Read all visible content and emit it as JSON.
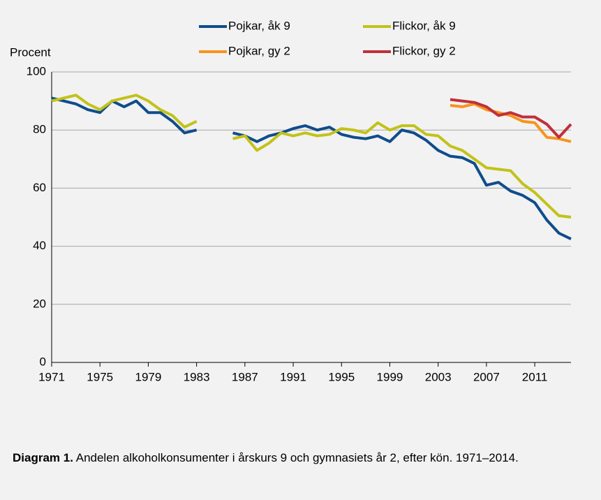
{
  "chart_data": {
    "type": "line",
    "y_label": "Procent",
    "x": [
      1971,
      1972,
      1973,
      1974,
      1975,
      1976,
      1977,
      1978,
      1979,
      1980,
      1981,
      1982,
      1983,
      1984,
      1985,
      1986,
      1987,
      1988,
      1989,
      1990,
      1991,
      1992,
      1993,
      1994,
      1995,
      1996,
      1997,
      1998,
      1999,
      2000,
      2001,
      2002,
      2003,
      2004,
      2005,
      2006,
      2007,
      2008,
      2009,
      2010,
      2011,
      2012,
      2013,
      2014
    ],
    "series": [
      {
        "name": "Pojkar, åk 9",
        "color": "#0f4c8c",
        "values": [
          91,
          90,
          89,
          87,
          86,
          90,
          88,
          90,
          86,
          86,
          83,
          79,
          80,
          null,
          null,
          79,
          78,
          76,
          78,
          79,
          80.5,
          81.5,
          80,
          81,
          78.5,
          77.5,
          77,
          78,
          76,
          80,
          79,
          76.5,
          73,
          71,
          70.5,
          68.5,
          61,
          62,
          59,
          57.5,
          55,
          49,
          44.5,
          42.5
        ]
      },
      {
        "name": "Flickor, åk 9",
        "color": "#c2c21a",
        "values": [
          90,
          91,
          92,
          89,
          87,
          90,
          91,
          92,
          90,
          87,
          85,
          81,
          83,
          null,
          null,
          77,
          78,
          73,
          75.5,
          79,
          78,
          79,
          78,
          78.5,
          80.5,
          80,
          79,
          82.5,
          80,
          81.5,
          81.5,
          78.5,
          78,
          74.5,
          73,
          70,
          67,
          66.5,
          66,
          61.5,
          58.5,
          54.5,
          50.5,
          50
        ]
      },
      {
        "name": "Pojkar, gy 2",
        "color": "#f7941d",
        "values": [
          null,
          null,
          null,
          null,
          null,
          null,
          null,
          null,
          null,
          null,
          null,
          null,
          null,
          null,
          null,
          null,
          null,
          null,
          null,
          null,
          null,
          null,
          null,
          null,
          null,
          null,
          null,
          null,
          null,
          null,
          null,
          null,
          null,
          88.5,
          88,
          89,
          87,
          86,
          85,
          83,
          82.5,
          77.5,
          77,
          76
        ]
      },
      {
        "name": "Flickor, gy 2",
        "color": "#c0303a",
        "values": [
          null,
          null,
          null,
          null,
          null,
          null,
          null,
          null,
          null,
          null,
          null,
          null,
          null,
          null,
          null,
          null,
          null,
          null,
          null,
          null,
          null,
          null,
          null,
          null,
          null,
          null,
          null,
          null,
          null,
          null,
          null,
          null,
          null,
          90.5,
          90,
          89.5,
          88,
          85,
          86,
          84.5,
          84.5,
          82,
          77.5,
          82
        ]
      }
    ],
    "xlim": [
      1971,
      2014
    ],
    "xticks": [
      1971,
      1975,
      1979,
      1983,
      1987,
      1991,
      1995,
      1999,
      2003,
      2007,
      2011
    ],
    "ylim": [
      0,
      100
    ],
    "yticks": [
      0,
      20,
      40,
      60,
      80,
      100
    ],
    "grid": true,
    "caption_label": "Diagram 1.",
    "caption_text": "Andelen alkoholkonsumenter i årskurs 9 och gymnasiets år 2, efter kön. 1971–2014."
  }
}
